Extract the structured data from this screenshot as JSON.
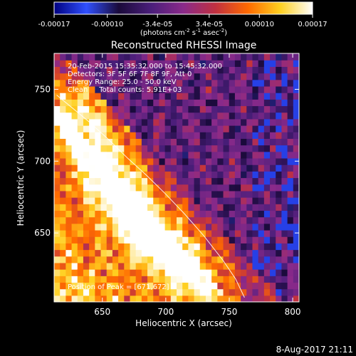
{
  "colorbar": {
    "tick_labels": [
      "-0.00017",
      "-0.00010",
      "-3.4e-05",
      "3.4e-05",
      "0.00010",
      "0.00017"
    ],
    "tick_values": [
      -0.00017,
      -0.0001,
      -3.4e-05,
      3.4e-05,
      0.0001,
      0.00017
    ],
    "range": [
      -0.00017,
      0.00017
    ],
    "units_main": "(photons cm",
    "units_exp1": "-2",
    "units_mid": " s",
    "units_exp2": "-1",
    "units_tail": " asec",
    "units_exp3": "-2",
    "units_close": ")",
    "colormap": [
      "#000080",
      "#3050ff",
      "#1a0a3a",
      "#4a1e7a",
      "#8a2a8a",
      "#c03040",
      "#ff6a00",
      "#ffd020",
      "#ffffff"
    ]
  },
  "header": {
    "title": "Reconstructed RHESSI Image",
    "time_range": "20-Feb-2015 15:35:32.000 to 15:45:32.000",
    "detectors": "Detectors: 3F 5F 6F 7F 8F 9F, Att 0",
    "energy": "Energy Range: 25.0 - 50.0 keV",
    "clean": "Clean     Total counts: 5.91E+03",
    "peak": "Position of Peak = [671,672]"
  },
  "footer": {
    "date": "8-Aug-2017 21:11"
  },
  "chart_data": {
    "type": "heatmap",
    "title": "Reconstructed RHESSI Image",
    "xlabel": "Heliocentric X (arcsec)",
    "ylabel": "Heliocentric Y (arcsec)",
    "xlim": [
      612,
      805
    ],
    "ylim": [
      602,
      775
    ],
    "x_ticks": [
      650,
      700,
      750,
      800
    ],
    "y_ticks": [
      650,
      700,
      750
    ],
    "x_tick_labels": [
      "650",
      "700",
      "750",
      "800"
    ],
    "y_tick_labels": [
      "650",
      "700",
      "750"
    ],
    "limb_line": [
      [
        614,
        746
      ],
      [
        625,
        738
      ],
      [
        640,
        727
      ],
      [
        655,
        715
      ],
      [
        670,
        702
      ],
      [
        685,
        690
      ],
      [
        700,
        677
      ],
      [
        715,
        663
      ],
      [
        730,
        648
      ],
      [
        745,
        631
      ],
      [
        755,
        618
      ],
      [
        762,
        605
      ]
    ],
    "bright_sources": [
      {
        "x": 625,
        "y": 742,
        "intensity": 0.9
      },
      {
        "x": 640,
        "y": 725,
        "intensity": 0.8
      },
      {
        "x": 650,
        "y": 708,
        "intensity": 0.75
      },
      {
        "x": 660,
        "y": 690,
        "intensity": 0.9
      },
      {
        "x": 672,
        "y": 672,
        "intensity": 1.0
      },
      {
        "x": 690,
        "y": 655,
        "intensity": 0.85
      },
      {
        "x": 705,
        "y": 640,
        "intensity": 0.8
      },
      {
        "x": 720,
        "y": 628,
        "intensity": 0.7
      },
      {
        "x": 740,
        "y": 612,
        "intensity": 0.6
      }
    ]
  }
}
